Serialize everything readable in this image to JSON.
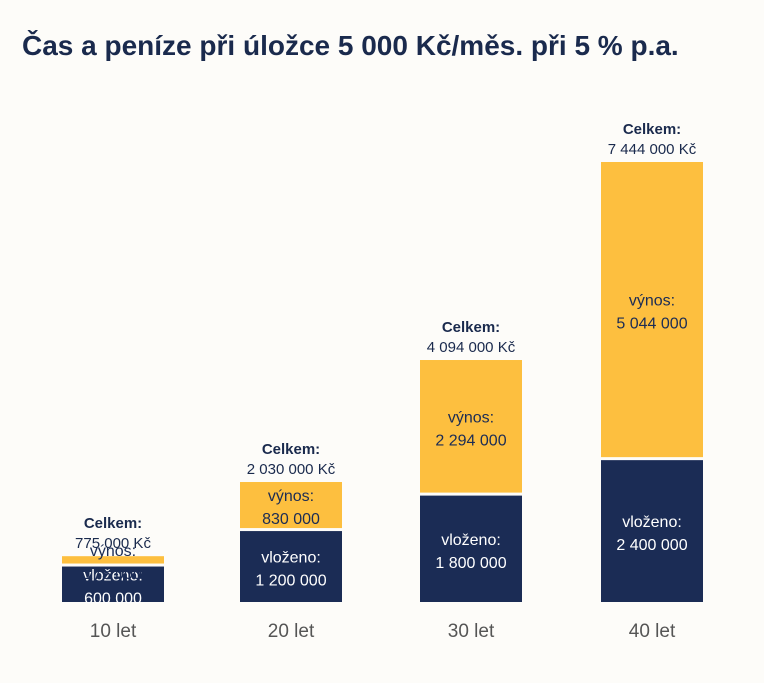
{
  "title": "Čas a peníze při úložce 5 000 Kč/měs. při 5 % p.a.",
  "colors": {
    "deposited": "#1b2c55",
    "yield": "#fdbf3f",
    "title": "#1a2a4d",
    "deposited_text": "#ffffff",
    "yield_text": "#1b2c55",
    "axis_text": "#555555"
  },
  "chart_data": {
    "type": "bar",
    "stacked": true,
    "categories": [
      "10 let",
      "20 let",
      "30 let",
      "40 let"
    ],
    "series": [
      {
        "name": "vloženo:",
        "values": [
          600000,
          1200000,
          1800000,
          2400000
        ],
        "labels": [
          "600 000",
          "1 200 000",
          "1 800 000",
          "2 400 000"
        ]
      },
      {
        "name": "výnos:",
        "values": [
          175000,
          830000,
          2294000,
          5044000
        ],
        "labels": [
          "175 000",
          "830 000",
          "2 294 000",
          "5 044 000"
        ]
      }
    ],
    "totals": {
      "title": "Celkem:",
      "values": [
        775000,
        2030000,
        4094000,
        7444000
      ],
      "labels": [
        "775 000 Kč",
        "2 030 000 Kč",
        "4 094 000 Kč",
        "7 444 000 Kč"
      ]
    },
    "grid": false,
    "legend": "none"
  }
}
